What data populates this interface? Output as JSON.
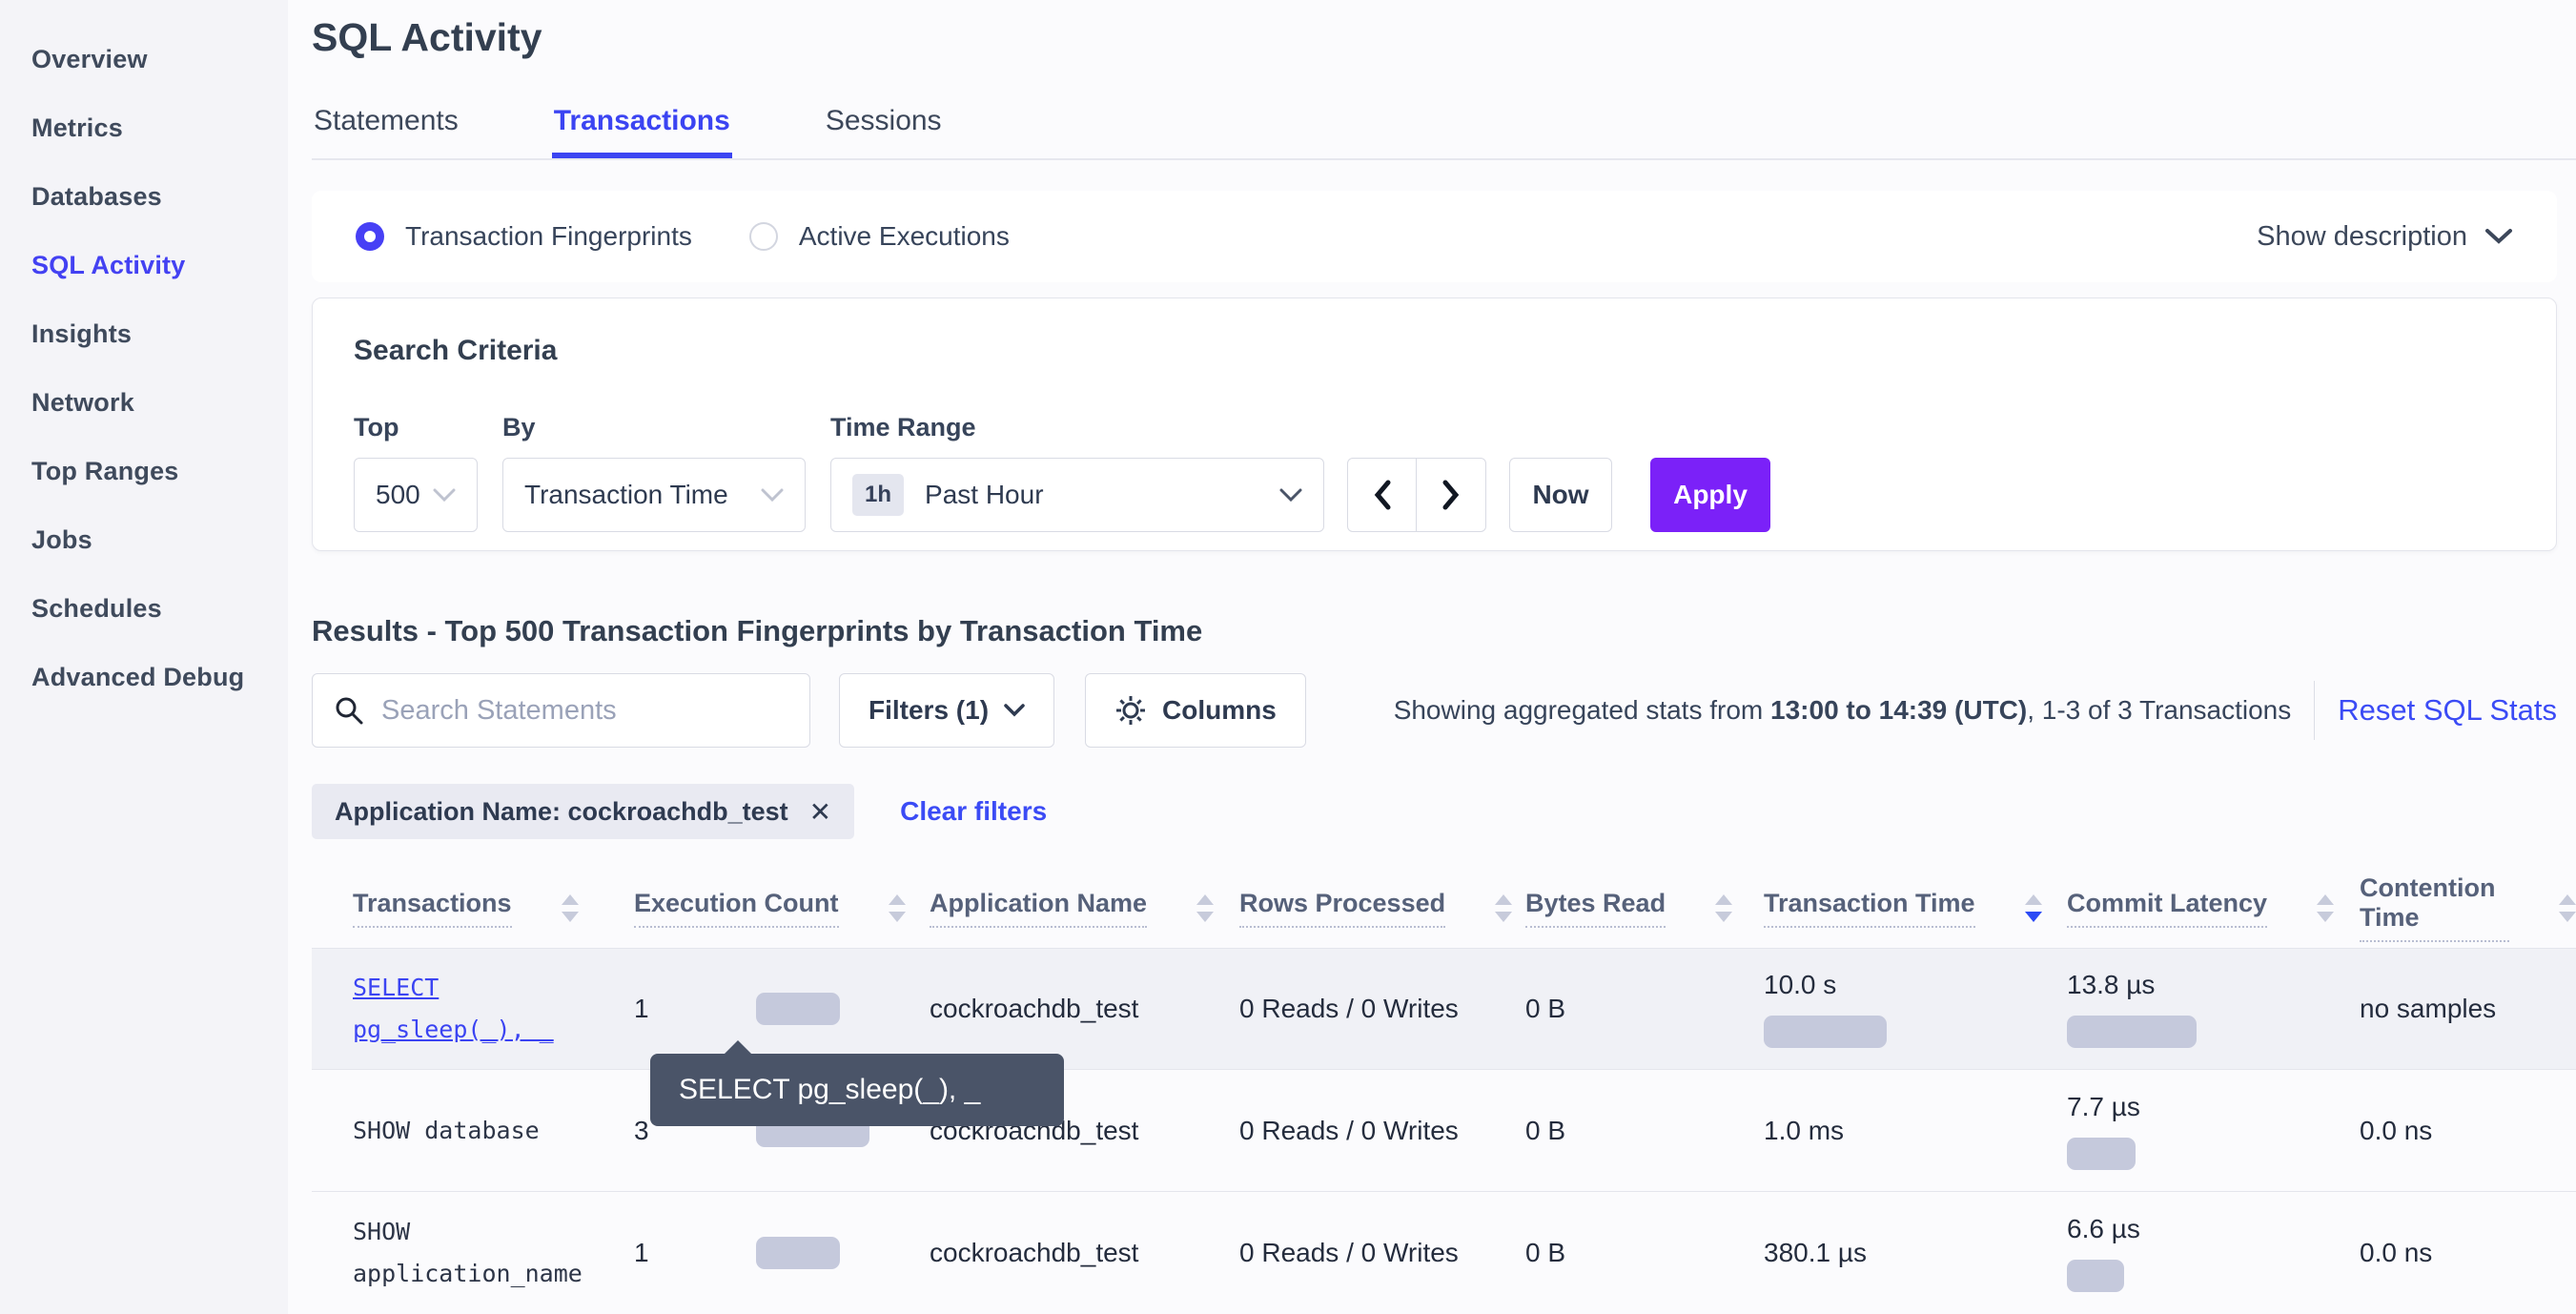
{
  "sidebar": {
    "items": [
      {
        "label": "Overview",
        "active": false
      },
      {
        "label": "Metrics",
        "active": false
      },
      {
        "label": "Databases",
        "active": false
      },
      {
        "label": "SQL Activity",
        "active": true
      },
      {
        "label": "Insights",
        "active": false
      },
      {
        "label": "Network",
        "active": false
      },
      {
        "label": "Top Ranges",
        "active": false
      },
      {
        "label": "Jobs",
        "active": false
      },
      {
        "label": "Schedules",
        "active": false
      },
      {
        "label": "Advanced Debug",
        "active": false
      }
    ]
  },
  "header": {
    "title": "SQL Activity",
    "tabs": [
      {
        "label": "Statements",
        "active": false
      },
      {
        "label": "Transactions",
        "active": true
      },
      {
        "label": "Sessions",
        "active": false
      }
    ]
  },
  "view_toggle": {
    "fingerprints_label": "Transaction Fingerprints",
    "active_exec_label": "Active Executions",
    "selected": "Transaction Fingerprints",
    "show_description_label": "Show description"
  },
  "search_criteria": {
    "heading": "Search Criteria",
    "top": {
      "label": "Top",
      "value": "500"
    },
    "by": {
      "label": "By",
      "value": "Transaction Time"
    },
    "time_range": {
      "label": "Time Range",
      "badge": "1h",
      "value": "Past Hour"
    },
    "now_label": "Now",
    "apply_label": "Apply"
  },
  "results": {
    "heading": "Results - Top 500 Transaction Fingerprints by Transaction Time",
    "search_placeholder": "Search Statements",
    "filters_label": "Filters (1)",
    "columns_label": "Columns",
    "stats_prefix": "Showing aggregated stats from ",
    "stats_range": "13:00 to 14:39 (UTC)",
    "stats_suffix": ", 1-3 of 3 Transactions",
    "reset_label": "Reset SQL Stats",
    "filter_chip": "Application Name: cockroachdb_test",
    "chip_close_glyph": "✕",
    "clear_filters_label": "Clear filters"
  },
  "table": {
    "columns": [
      {
        "label": "Transactions",
        "sort": "none"
      },
      {
        "label": "Execution Count",
        "sort": "none"
      },
      {
        "label": "Application Name",
        "sort": "none"
      },
      {
        "label": "Rows Processed",
        "sort": "none"
      },
      {
        "label": "Bytes Read",
        "sort": "none"
      },
      {
        "label": "Transaction Time",
        "sort": "desc"
      },
      {
        "label": "Commit Latency",
        "sort": "none"
      },
      {
        "label": "Contention Time",
        "sort": "none"
      }
    ],
    "rows": [
      {
        "query_line1": "SELECT",
        "query_line2": "pg_sleep(_), _",
        "exec_count": "1",
        "app_name": "cockroachdb_test",
        "rows_processed": "0 Reads / 0 Writes",
        "bytes_read": "0 B",
        "txn_time": "10.0 s",
        "commit_latency": "13.8 µs",
        "contention": "no samples",
        "bars": {
          "exec": 88,
          "txn": 129,
          "commit": 136
        }
      },
      {
        "query_line1": "SHOW database",
        "query_line2": "",
        "exec_count": "3",
        "app_name": "cockroachdb_test",
        "rows_processed": "0 Reads / 0 Writes",
        "bytes_read": "0 B",
        "txn_time": "1.0 ms",
        "commit_latency": "7.7 µs",
        "contention": "0.0 ns",
        "bars": {
          "exec": 119,
          "txn": 0,
          "commit": 72
        }
      },
      {
        "query_line1": "SHOW",
        "query_line2": "application_name",
        "exec_count": "1",
        "app_name": "cockroachdb_test",
        "rows_processed": "0 Reads / 0 Writes",
        "bytes_read": "0 B",
        "txn_time": "380.1 µs",
        "commit_latency": "6.6 µs",
        "contention": "0.0 ns",
        "bars": {
          "exec": 88,
          "txn": 0,
          "commit": 60
        }
      }
    ]
  },
  "tooltip": {
    "text": "SELECT pg_sleep(_), _"
  },
  "colors": {
    "accent_blue": "#3b44f2",
    "apply_purple": "#7b21f8",
    "bar_gray": "#c5c9dc",
    "tooltip_bg": "#4a5468"
  }
}
